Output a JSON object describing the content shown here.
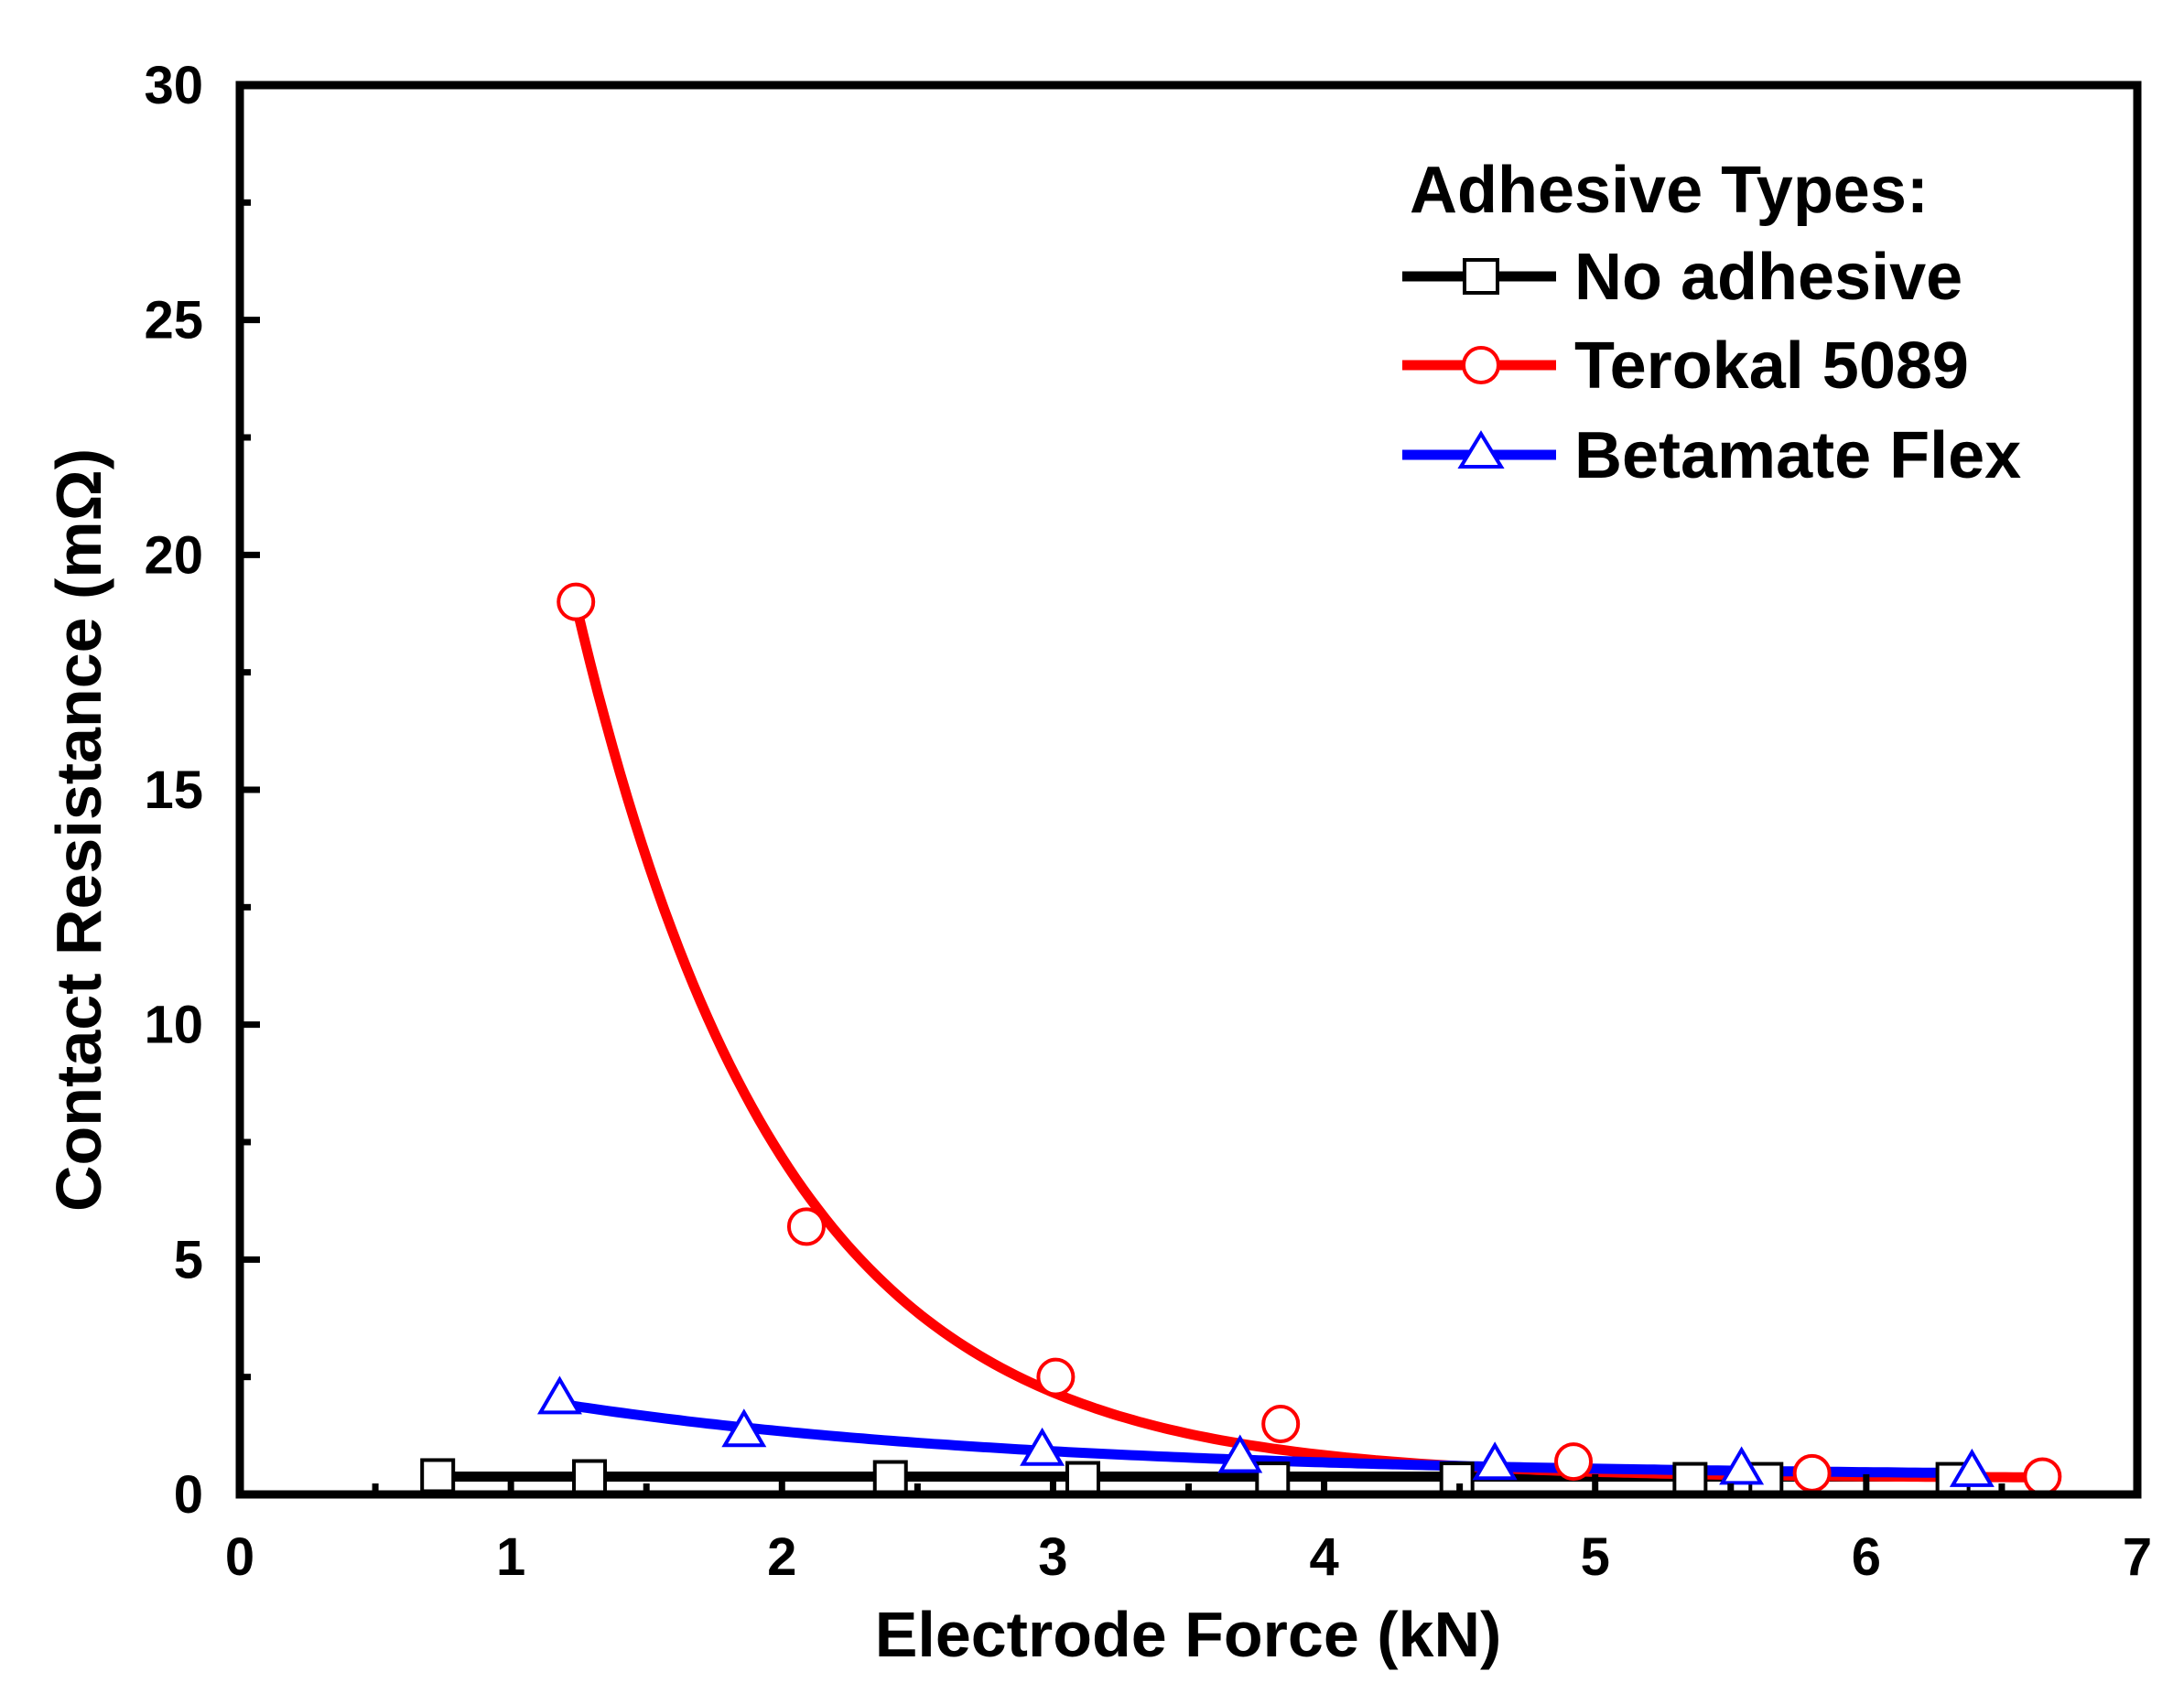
{
  "chart_data": {
    "type": "scatter",
    "title": "",
    "xlabel": "Electrode Force (kN)",
    "ylabel": "Contact Resistance (mΩ)",
    "xlim": [
      0,
      7
    ],
    "ylim": [
      0,
      30
    ],
    "xticks": [
      "0",
      "1",
      "2",
      "3",
      "4",
      "5",
      "6",
      "7"
    ],
    "yticks": [
      "0",
      "5",
      "10",
      "15",
      "20",
      "25",
      "30"
    ],
    "grid": false,
    "legend": {
      "title": "Adhesive Types:",
      "position": "top-right"
    },
    "series": [
      {
        "name": "No adhesive",
        "color": "#000000",
        "marker": "square",
        "points": [
          {
            "x": 0.73,
            "y": 0.4
          },
          {
            "x": 1.29,
            "y": 0.38
          },
          {
            "x": 2.4,
            "y": 0.36
          },
          {
            "x": 3.11,
            "y": 0.34
          },
          {
            "x": 3.81,
            "y": 0.33
          },
          {
            "x": 4.49,
            "y": 0.33
          },
          {
            "x": 5.35,
            "y": 0.32
          },
          {
            "x": 5.63,
            "y": 0.32
          },
          {
            "x": 6.32,
            "y": 0.32
          }
        ],
        "fit": {
          "a": 0.025,
          "b": 0.0,
          "c": 0.38
        }
      },
      {
        "name": "Terokal 5089",
        "color": "#ff0000",
        "marker": "circle",
        "points": [
          {
            "x": 1.24,
            "y": 19.0
          },
          {
            "x": 2.09,
            "y": 5.7
          },
          {
            "x": 3.01,
            "y": 2.5
          },
          {
            "x": 3.84,
            "y": 1.5
          },
          {
            "x": 4.92,
            "y": 0.7
          },
          {
            "x": 5.8,
            "y": 0.45
          },
          {
            "x": 6.65,
            "y": 0.38
          }
        ],
        "fit": {
          "a": 18.6,
          "b": 1.32,
          "c": 0.35
        }
      },
      {
        "name": "Betamate Flex",
        "color": "#0000ff",
        "marker": "triangle",
        "points": [
          {
            "x": 1.18,
            "y": 2.0
          },
          {
            "x": 1.86,
            "y": 1.3
          },
          {
            "x": 2.96,
            "y": 0.9
          },
          {
            "x": 3.69,
            "y": 0.75
          },
          {
            "x": 4.63,
            "y": 0.6
          },
          {
            "x": 5.54,
            "y": 0.5
          },
          {
            "x": 6.39,
            "y": 0.45
          }
        ],
        "fit": {
          "a": 1.55,
          "b": 0.58,
          "c": 0.38
        }
      }
    ]
  }
}
